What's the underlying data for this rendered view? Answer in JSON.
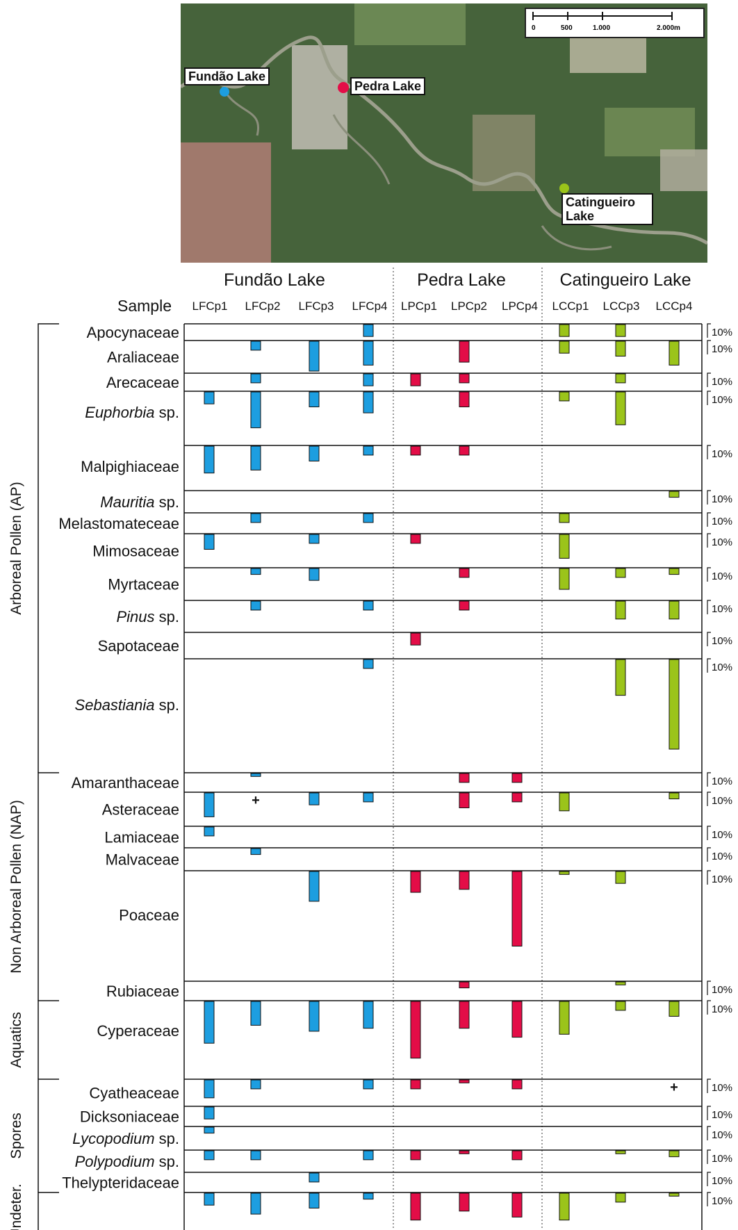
{
  "map": {
    "scale_labels": [
      "0",
      "500",
      "1.000",
      "2.000m"
    ],
    "lakes": [
      {
        "name": "Fundão Lake",
        "color": "#1d9ee0"
      },
      {
        "name": "Pedra Lake",
        "color": "#e30d47"
      },
      {
        "name": "Catingueiro Lake",
        "color": "#9bc41a"
      }
    ]
  },
  "chart_data": {
    "type": "bar",
    "orientation": "vertical, bars hanging downward from each taxon row line",
    "unit": "%",
    "scale_label": "10%",
    "sample_header": "Sample",
    "lakes": [
      {
        "name": "Fundão Lake",
        "color": "#1d9ee0",
        "samples": [
          "LFCp1",
          "LFCp2",
          "LFCp3",
          "LFCp4"
        ]
      },
      {
        "name": "Pedra Lake",
        "color": "#e30d47",
        "samples": [
          "LPCp1",
          "LPCp2",
          "LPCp4"
        ]
      },
      {
        "name": "Catingueiro Lake",
        "color": "#9bc41a",
        "samples": [
          "LCCp1",
          "LCCp3",
          "LCCp4"
        ]
      }
    ],
    "groups": [
      {
        "name": "Arboreal Pollen (AP)",
        "from": 0,
        "to": 11
      },
      {
        "name": "Non Arboreal Pollen (NAP)",
        "from": 12,
        "to": 17
      },
      {
        "name": "Aquatics",
        "from": 18,
        "to": 18
      },
      {
        "name": "Spores",
        "from": 19,
        "to": 23
      },
      {
        "name": "Undeter.",
        "from": 24,
        "to": 24
      }
    ],
    "taxa": [
      {
        "name": "Apocynaceae",
        "italic": "",
        "suffix": "",
        "values": [
          0,
          0,
          0,
          4,
          0,
          0,
          0,
          4,
          4,
          0
        ],
        "plus": []
      },
      {
        "name": "Araliaceae",
        "italic": "",
        "suffix": "",
        "values": [
          0,
          3,
          10,
          8,
          0,
          7,
          0,
          4,
          5,
          8
        ],
        "plus": []
      },
      {
        "name": "Arecaceae",
        "italic": "",
        "suffix": "",
        "values": [
          0,
          3,
          0,
          4,
          4,
          3,
          0,
          0,
          3,
          0
        ],
        "plus": []
      },
      {
        "name": "",
        "italic": "Euphorbia",
        "suffix": " sp.",
        "values": [
          4,
          12,
          5,
          7,
          0,
          5,
          0,
          3,
          11,
          0
        ],
        "plus": []
      },
      {
        "name": "Malpighiaceae",
        "italic": "",
        "suffix": "",
        "values": [
          9,
          8,
          5,
          3,
          3,
          3,
          0,
          0,
          0,
          0
        ],
        "plus": []
      },
      {
        "name": "",
        "italic": "Mauritia",
        "suffix": " sp.",
        "values": [
          0,
          0,
          0,
          0,
          0,
          0,
          0,
          0,
          0,
          2
        ],
        "plus": []
      },
      {
        "name": "Melastomateceae",
        "italic": "",
        "suffix": "",
        "values": [
          0,
          3,
          0,
          3,
          0,
          0,
          0,
          3,
          0,
          0
        ],
        "plus": []
      },
      {
        "name": "Mimosaceae",
        "italic": "",
        "suffix": "",
        "values": [
          5,
          0,
          3,
          0,
          3,
          0,
          0,
          8,
          0,
          0
        ],
        "plus": []
      },
      {
        "name": "Myrtaceae",
        "italic": "",
        "suffix": "",
        "values": [
          0,
          2,
          4,
          0,
          0,
          3,
          0,
          7,
          3,
          2
        ],
        "plus": []
      },
      {
        "name": "",
        "italic": "Pinus",
        "suffix": " sp.",
        "values": [
          0,
          3,
          0,
          3,
          0,
          3,
          0,
          0,
          6,
          6
        ],
        "plus": []
      },
      {
        "name": "Sapotaceae",
        "italic": "",
        "suffix": "",
        "values": [
          0,
          0,
          0,
          0,
          4,
          0,
          0,
          0,
          0,
          0
        ],
        "plus": []
      },
      {
        "name": "",
        "italic": "Sebastiania",
        "suffix": " sp.",
        "values": [
          0,
          0,
          0,
          3,
          0,
          0,
          0,
          0,
          12,
          30
        ],
        "plus": []
      },
      {
        "name": "Amaranthaceae",
        "italic": "",
        "suffix": "",
        "values": [
          0,
          1,
          0,
          0,
          0,
          3,
          3,
          0,
          0,
          0
        ],
        "plus": []
      },
      {
        "name": "Asteraceae",
        "italic": "",
        "suffix": "",
        "values": [
          8,
          0,
          4,
          3,
          0,
          5,
          3,
          6,
          0,
          2
        ],
        "plus": [
          1
        ]
      },
      {
        "name": "Lamiaceae",
        "italic": "",
        "suffix": "",
        "values": [
          3,
          0,
          0,
          0,
          0,
          0,
          0,
          0,
          0,
          0
        ],
        "plus": []
      },
      {
        "name": "Malvaceae",
        "italic": "",
        "suffix": "",
        "values": [
          0,
          2,
          0,
          0,
          0,
          0,
          0,
          0,
          0,
          0
        ],
        "plus": []
      },
      {
        "name": "Poaceae",
        "italic": "",
        "suffix": "",
        "values": [
          0,
          0,
          10,
          0,
          7,
          6,
          25,
          1,
          4,
          0
        ],
        "plus": []
      },
      {
        "name": "Rubiaceae",
        "italic": "",
        "suffix": "",
        "values": [
          0,
          0,
          0,
          0,
          0,
          2,
          0,
          0,
          1,
          0
        ],
        "plus": []
      },
      {
        "name": "Cyperaceae",
        "italic": "",
        "suffix": "",
        "values": [
          14,
          8,
          10,
          9,
          19,
          9,
          12,
          11,
          3,
          5
        ],
        "plus": []
      },
      {
        "name": "Cyatheaceae",
        "italic": "",
        "suffix": "",
        "values": [
          6,
          3,
          0,
          3,
          3,
          1,
          3,
          0,
          0,
          0
        ],
        "plus": [
          9
        ]
      },
      {
        "name": "Dicksoniaceae",
        "italic": "",
        "suffix": "",
        "values": [
          4,
          0,
          0,
          0,
          0,
          0,
          0,
          0,
          0,
          0
        ],
        "plus": []
      },
      {
        "name": "",
        "italic": "Lycopodium",
        "suffix": " sp.",
        "values": [
          2,
          0,
          0,
          0,
          0,
          0,
          0,
          0,
          0,
          0
        ],
        "plus": []
      },
      {
        "name": "",
        "italic": "Polypodium",
        "suffix": " sp.",
        "values": [
          3,
          3,
          0,
          3,
          3,
          1,
          3,
          0,
          1,
          2
        ],
        "plus": []
      },
      {
        "name": "Thelypteridaceae",
        "italic": "",
        "suffix": "",
        "values": [
          0,
          0,
          3,
          0,
          0,
          0,
          0,
          0,
          0,
          0
        ],
        "plus": []
      },
      {
        "name": "",
        "italic": "",
        "suffix": "",
        "values": [
          4,
          7,
          5,
          2,
          9,
          6,
          8,
          9,
          3,
          1
        ],
        "plus": []
      }
    ]
  }
}
